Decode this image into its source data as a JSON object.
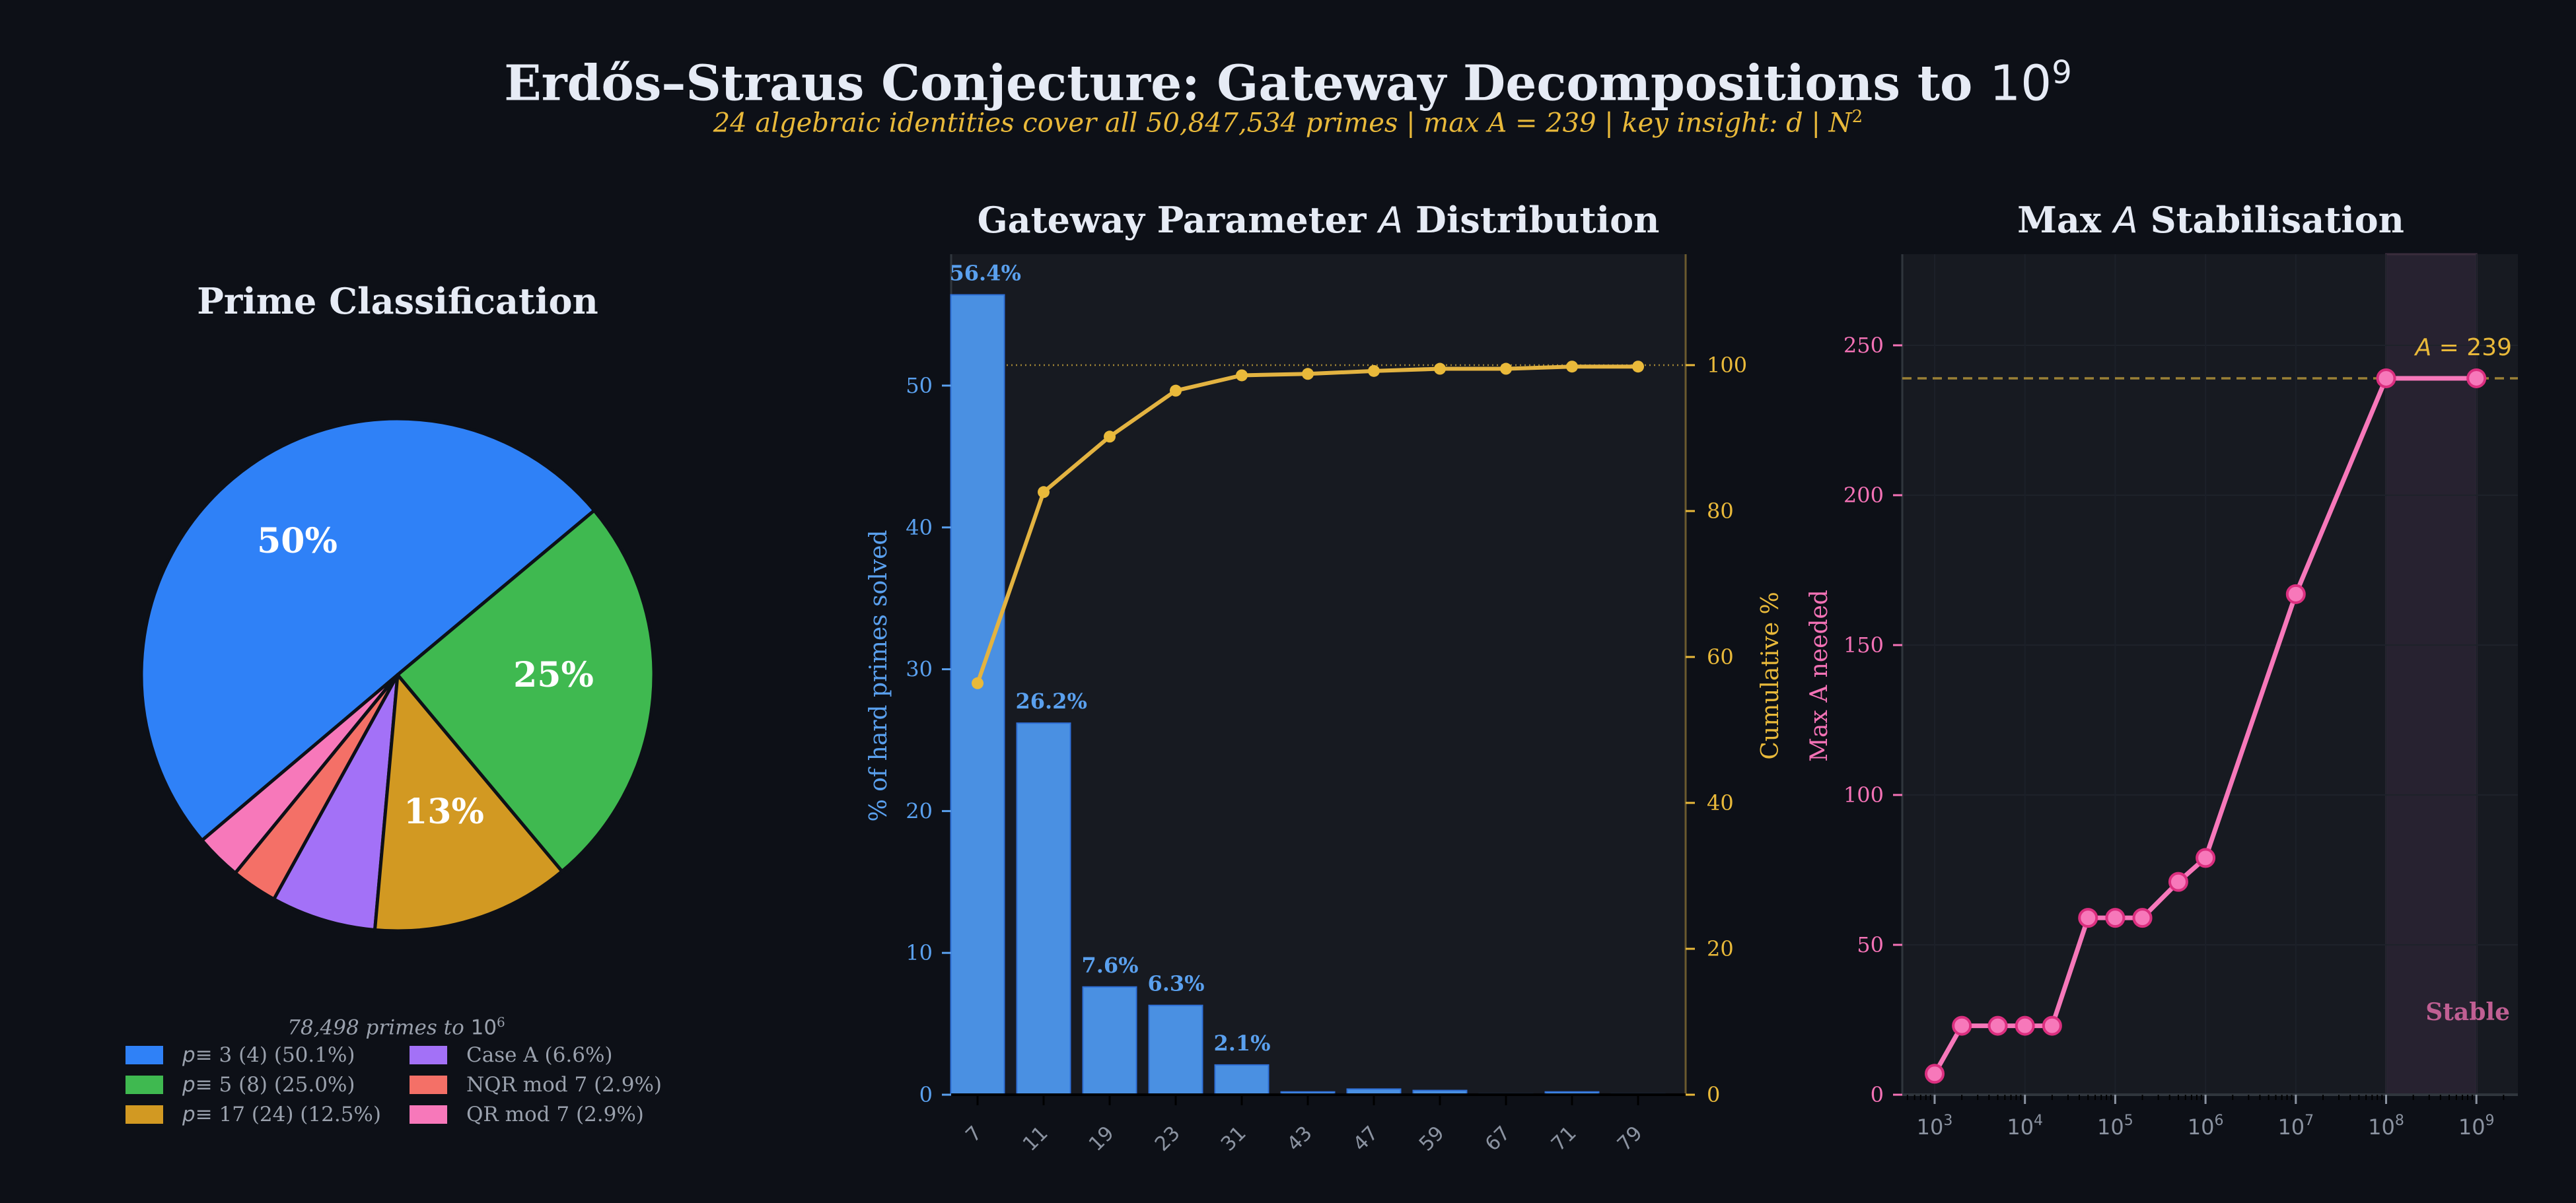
{
  "header": {
    "title": "Erdős–Straus Conjecture: Gateway Decompositions to ",
    "title_base": "10",
    "title_exp": "9",
    "subtitle_part1": "24 algebraic identities cover all 50,847,534 primes  |  max A = 239  |  key insight: d | N",
    "subtitle_exp": "2"
  },
  "colors": {
    "background": "#0d1017",
    "plot_bg": "#171a21",
    "blue": "#2f81f7",
    "bar_blue": "#4a90e2",
    "green": "#3fb950",
    "gold": "#d29922",
    "purple": "#a371f7",
    "salmon": "#f47067",
    "pink": "#f778ba",
    "cumulative": "#e3b341",
    "max_line": "#f472b6"
  },
  "chart_data": [
    {
      "type": "pie",
      "title": "Prime Classification",
      "caption": "78,498 primes to 10^6",
      "caption_text": "78,498 primes to ",
      "caption_base": "10",
      "caption_exp": "6",
      "slices": [
        {
          "label_math": "p",
          "label": " ≡ 3 (4)  (50.1%)",
          "value": 50.1,
          "color": "#2f81f7",
          "wedge_label": "50%"
        },
        {
          "label_math": "p",
          "label": " ≡ 5 (8)  (25.0%)",
          "value": 25.0,
          "color": "#3fb950",
          "wedge_label": "25%"
        },
        {
          "label_math": "p",
          "label": " ≡ 17 (24)  (12.5%)",
          "value": 12.5,
          "color": "#d29922",
          "wedge_label": "13%"
        },
        {
          "label_math": "",
          "label": "Case A  (6.6%)",
          "value": 6.6,
          "color": "#a371f7",
          "wedge_label": ""
        },
        {
          "label_math": "",
          "label": "NQR mod 7  (2.9%)",
          "value": 2.9,
          "color": "#f47067",
          "wedge_label": ""
        },
        {
          "label_math": "",
          "label": "QR mod 7  (2.9%)",
          "value": 2.9,
          "color": "#f778ba",
          "wedge_label": ""
        }
      ]
    },
    {
      "type": "bar",
      "title": "Gateway Parameter A Distribution",
      "title_text": "Gateway Parameter ",
      "title_italic": "A",
      "title_tail": " Distribution",
      "xlabel": "",
      "ylabel": "% of hard primes solved",
      "ylabel_right": "Cumulative %",
      "categories": [
        "7",
        "11",
        "19",
        "23",
        "31",
        "43",
        "47",
        "59",
        "67",
        "71",
        "79"
      ],
      "series": [
        {
          "name": "% of hard primes solved",
          "axis": "left",
          "type": "bar",
          "values": [
            56.4,
            26.2,
            7.6,
            6.3,
            2.1,
            0.2,
            0.4,
            0.3,
            0.05,
            0.2,
            0.05
          ],
          "labels": [
            "56.4%",
            "26.2%",
            "7.6%",
            "6.3%",
            "2.1%",
            "",
            "",
            "",
            "",
            "",
            ""
          ]
        },
        {
          "name": "Cumulative %",
          "axis": "right",
          "type": "line",
          "values": [
            56.4,
            82.6,
            90.2,
            96.5,
            98.6,
            98.8,
            99.2,
            99.5,
            99.5,
            99.8,
            99.8
          ]
        }
      ],
      "yticks_left": [
        0,
        10,
        20,
        30,
        40,
        50
      ],
      "yticks_right": [
        0,
        20,
        40,
        60,
        80,
        100
      ],
      "ylim": [
        0,
        59.5
      ],
      "ylim_right": [
        0,
        115
      ],
      "reference_line": 100,
      "grid": false
    },
    {
      "type": "line",
      "title": "Max A Stabilisation",
      "title_text": "Max ",
      "title_italic": "A",
      "title_tail": " Stabilisation",
      "xlabel": "",
      "ylabel": "Max A needed",
      "xscale": "log",
      "x": [
        1000,
        2000,
        5000,
        10000,
        20000,
        50000,
        100000,
        200000,
        500000,
        1000000,
        10000000,
        100000000,
        1000000000
      ],
      "values": [
        7,
        23,
        23,
        23,
        23,
        59,
        59,
        59,
        71,
        79,
        167,
        239,
        239
      ],
      "xticks": [
        "10^3",
        "10^4",
        "10^5",
        "10^6",
        "10^7",
        "10^8",
        "10^9"
      ],
      "yticks": [
        0,
        50,
        100,
        150,
        200,
        250
      ],
      "ylim": [
        0,
        280
      ],
      "reference_line": 239,
      "reference_label_italic": "A",
      "reference_label_tail": " = 239",
      "shaded_region": {
        "from": "10^8",
        "to": "10^9",
        "label": "Stable"
      },
      "grid": true
    }
  ]
}
